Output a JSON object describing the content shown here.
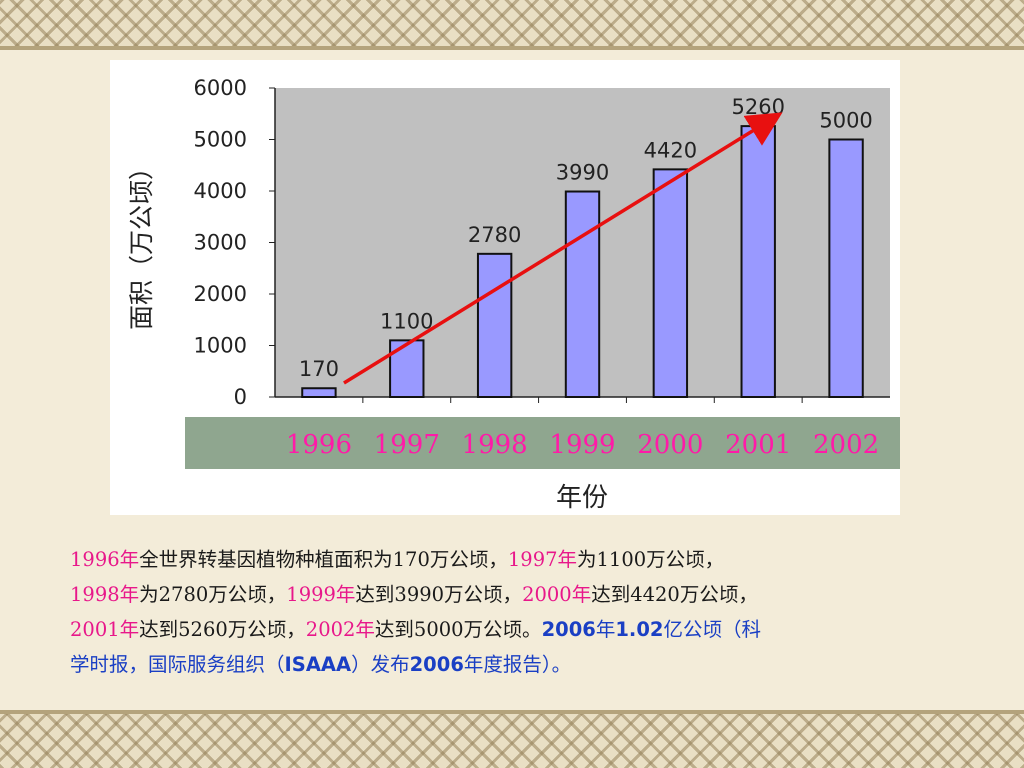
{
  "chart_data": {
    "type": "bar",
    "categories": [
      "1996",
      "1997",
      "1998",
      "1999",
      "2000",
      "2001",
      "2002"
    ],
    "values": [
      170,
      1100,
      2780,
      3990,
      4420,
      5260,
      5000
    ],
    "data_labels": [
      "170",
      "1100",
      "2780",
      "3990",
      "4420",
      "5260",
      "5000"
    ],
    "ylim": [
      0,
      6000
    ],
    "yticks": [
      "0",
      "1000",
      "2000",
      "3000",
      "4000",
      "5000",
      "6000"
    ],
    "ylabel": "面积（万公顷）",
    "xlabel": "年份",
    "grid": false,
    "legend": "none",
    "trend_arrow": {
      "from": "1996",
      "to": "2001"
    },
    "colors": {
      "bar": "#9999ff",
      "plot_bg": "#c0c0c0",
      "year_band": "#8fa68f",
      "year_text": "#ff1aa8",
      "arrow": "#e81010"
    }
  },
  "caption": {
    "l1_y1996": "1996年",
    "l1_t1": "全世界转基因植物种植面积为170万公顷，",
    "l1_y1997": "1997年",
    "l1_t2": "为1100万公顷，",
    "l2_y1998": "1998年",
    "l2_t1": "为2780万公顷，",
    "l2_y1999": "1999年",
    "l2_t2": "达到3990万公顷，",
    "l2_y2000": "2000年",
    "l2_t3": "达到4420万公顷，",
    "l3_y2001": "2001年",
    "l3_t1": "达到5260万公顷，",
    "l3_y2002": "2002年",
    "l3_t2": "达到5000万公顷。",
    "n_2006": "2006",
    "n_t1": "年",
    "n_102": "1.02",
    "n_t2": "亿公顷（科",
    "l4_t1": "学时报，国际服务组织（",
    "l4_isaaa": "ISAAA",
    "l4_t2": "）发布",
    "l4_2006": "2006",
    "l4_t3": "年度报告）。"
  }
}
